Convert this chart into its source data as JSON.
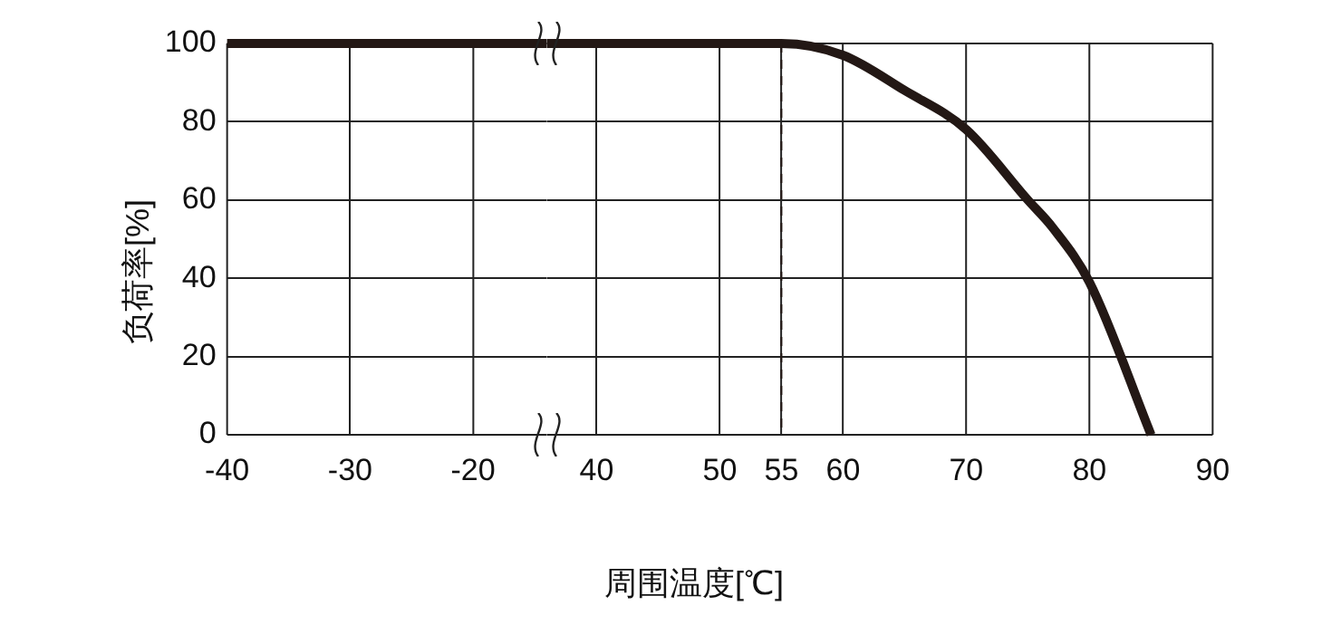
{
  "chart_data": [
    {
      "type": "line",
      "ylabel": "负荷率[%]",
      "x": [
        -40,
        -30,
        -20,
        -14
      ],
      "values": [
        100,
        100,
        100,
        100
      ],
      "color": "#231815",
      "marker": "none",
      "xlim": [
        -40,
        -14
      ],
      "xticks": [
        -40,
        -30,
        -20
      ],
      "ylim": [
        0,
        100
      ],
      "yticks": [
        0,
        20,
        40,
        60,
        80,
        100
      ],
      "grid": true
    },
    {
      "type": "line",
      "xlabel": "周围温度[℃]",
      "x": [
        36,
        55,
        60,
        65,
        70,
        75,
        77,
        80,
        85
      ],
      "values": [
        100,
        100,
        97,
        88,
        78,
        60,
        53,
        39,
        0
      ],
      "color": "#231815",
      "marker": "none",
      "xlim": [
        36,
        90
      ],
      "xticks": [
        40,
        50,
        55,
        60,
        70,
        80,
        90
      ],
      "ylim": [
        0,
        100
      ],
      "yticks": [
        0,
        20,
        40,
        60,
        80,
        100
      ],
      "grid": true,
      "tick_labels": "x",
      "ref_lines": [
        {
          "axis": "x",
          "value": 55,
          "line_style": "dashed",
          "color": "#231815"
        }
      ]
    }
  ]
}
